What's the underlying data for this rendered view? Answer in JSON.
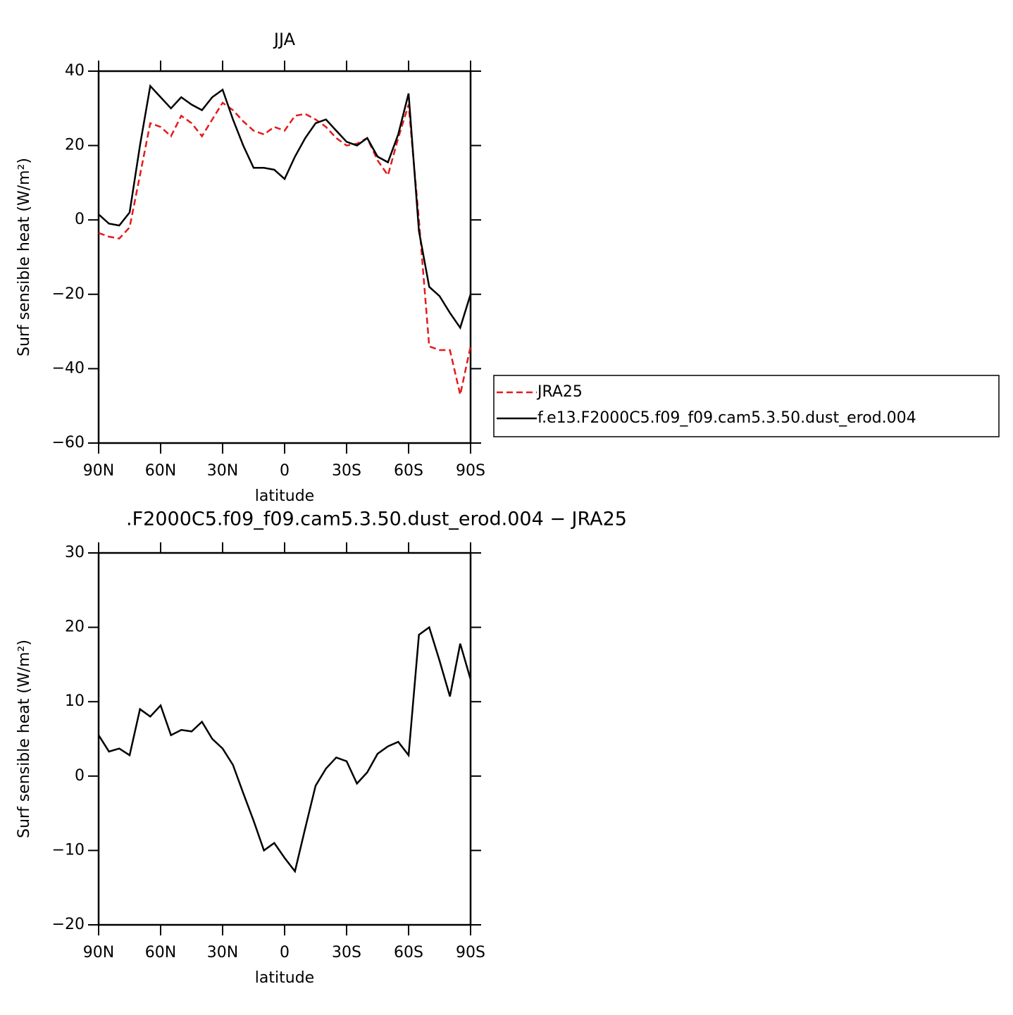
{
  "chart_data": [
    {
      "type": "line",
      "title": "JJA",
      "xlabel": "latitude",
      "ylabel": "Surf sensible heat (W/m²)",
      "x": [
        90,
        85,
        80,
        75,
        70,
        65,
        60,
        55,
        50,
        45,
        40,
        35,
        30,
        25,
        20,
        15,
        10,
        5,
        0,
        -5,
        -10,
        -15,
        -20,
        -25,
        -30,
        -35,
        -40,
        -45,
        -50,
        -55,
        -60,
        -65,
        -70,
        -75,
        -80,
        -85,
        -90
      ],
      "xlim": [
        90,
        -90
      ],
      "xticks": [
        {
          "value": 90,
          "label": "90N"
        },
        {
          "value": 60,
          "label": "60N"
        },
        {
          "value": 30,
          "label": "30N"
        },
        0,
        {
          "value": -30,
          "label": "30S"
        },
        {
          "value": -60,
          "label": "60S"
        },
        {
          "value": -90,
          "label": "90S"
        }
      ],
      "ylim": [
        -60,
        40
      ],
      "yticks": [
        {
          "value": -60,
          "label": "−60"
        },
        {
          "value": -40,
          "label": "−40"
        },
        {
          "value": -20,
          "label": "−20"
        },
        0,
        20,
        40
      ],
      "legend": "right",
      "series": [
        {
          "name": "JRA25",
          "color": "#e41a1c",
          "line_style": "dashed",
          "values": [
            -3.5,
            -4.5,
            -5,
            -2,
            12,
            26,
            25,
            22.5,
            28,
            26,
            22.5,
            27,
            31.5,
            29.5,
            26.5,
            24,
            23,
            25,
            24,
            28,
            28.5,
            27,
            25,
            22,
            20,
            20.5,
            22,
            16,
            12,
            22,
            31,
            0,
            -34,
            -35,
            -35,
            -47,
            -34
          ]
        },
        {
          "name": "f.e13.F2000C5.f09_f09.cam5.3.50.dust_erod.004",
          "color": "#000000",
          "line_style": "solid",
          "values": [
            1.5,
            -1,
            -1.5,
            2,
            20,
            36,
            33,
            30,
            33,
            31,
            29.5,
            33,
            35,
            27,
            20,
            14,
            14,
            13.5,
            11,
            17,
            22,
            26,
            27,
            24,
            21,
            20,
            22,
            17,
            15.5,
            23,
            34,
            -3,
            -18,
            -20.5,
            -25,
            -29,
            -20
          ]
        }
      ]
    },
    {
      "type": "line",
      "title": ".F2000C5.f09_f09.cam5.3.50.dust_erod.004 − JRA25",
      "xlabel": "latitude",
      "ylabel": "Surf sensible heat (W/m²)",
      "x": [
        90,
        85,
        80,
        75,
        70,
        65,
        60,
        55,
        50,
        45,
        40,
        35,
        30,
        25,
        20,
        15,
        10,
        5,
        0,
        -5,
        -10,
        -15,
        -20,
        -25,
        -30,
        -35,
        -40,
        -45,
        -50,
        -55,
        -60,
        -65,
        -70,
        -75,
        -80,
        -85,
        -90
      ],
      "xlim": [
        90,
        -90
      ],
      "xticks": [
        {
          "value": 90,
          "label": "90N"
        },
        {
          "value": 60,
          "label": "60N"
        },
        {
          "value": 30,
          "label": "30N"
        },
        0,
        {
          "value": -30,
          "label": "30S"
        },
        {
          "value": -60,
          "label": "60S"
        },
        {
          "value": -90,
          "label": "90S"
        }
      ],
      "ylim": [
        -20,
        30
      ],
      "yticks": [
        {
          "value": -20,
          "label": "−20"
        },
        {
          "value": -10,
          "label": "−10"
        },
        0,
        10,
        20,
        30
      ],
      "series": [
        {
          "color": "#000000",
          "line_style": "solid",
          "values": [
            5.5,
            3.3,
            3.7,
            2.8,
            9,
            8,
            9.5,
            5.5,
            6.2,
            6,
            7.3,
            5,
            3.7,
            1.5,
            -2.3,
            -6,
            -10,
            -9,
            -11,
            -12.8,
            -7,
            -1.3,
            1,
            2.5,
            2,
            -1,
            0.5,
            3,
            4,
            4.6,
            2.8,
            19,
            20,
            15.5,
            10.7,
            17.8,
            13
          ]
        }
      ]
    }
  ]
}
